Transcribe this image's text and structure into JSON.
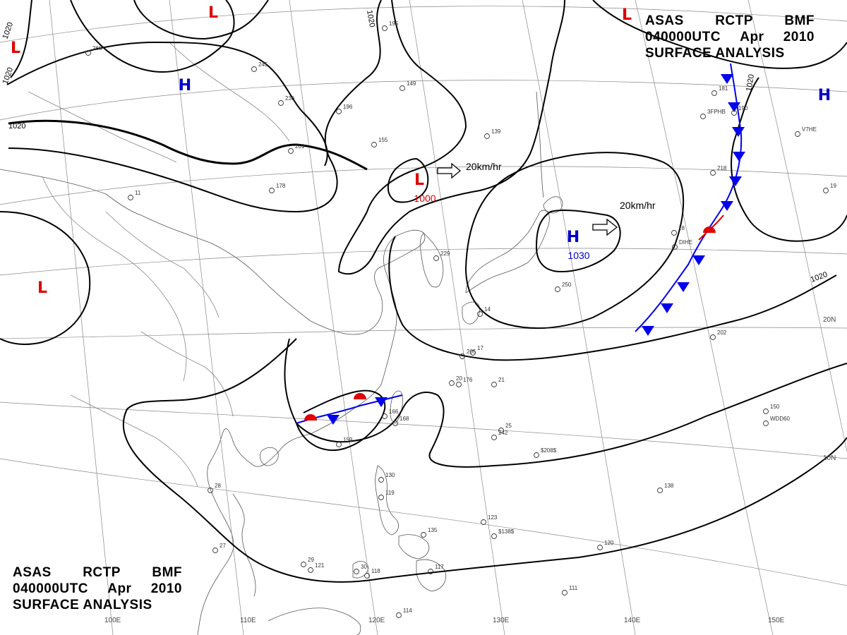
{
  "title_top": {
    "line1": [
      "ASAS",
      "RCTP",
      "BMF"
    ],
    "line2": [
      "040000UTC",
      "Apr",
      "2010"
    ],
    "line3": "SURFACE ANALYSIS"
  },
  "title_bottom": {
    "line1": [
      "ASAS",
      "RCTP",
      "BMF"
    ],
    "line2": [
      "040000UTC",
      "Apr",
      "2010"
    ],
    "line3": "SURFACE ANALYSIS"
  },
  "longitude_labels": [
    "100E",
    "110E",
    "120E",
    "130E",
    "140E",
    "150E"
  ],
  "latitude_labels": [
    "20N",
    "10N"
  ],
  "isobar_labels": [
    "1020",
    "1020",
    "1020",
    "1020",
    "1020",
    "1020"
  ],
  "pressure_centers": [
    {
      "type": "L",
      "color": "#e00000"
    },
    {
      "type": "L",
      "color": "#e00000"
    },
    {
      "type": "L",
      "color": "#e00000"
    },
    {
      "type": "L",
      "color": "#e00000",
      "value": "1000"
    },
    {
      "type": "L",
      "color": "#e00000"
    },
    {
      "type": "H",
      "color": "#0000cc"
    },
    {
      "type": "H",
      "color": "#0000cc",
      "value": "1030"
    },
    {
      "type": "H",
      "color": "#0000cc"
    }
  ],
  "motion_labels": [
    "20km/hr",
    "20km/hr"
  ],
  "station_values": [
    "245",
    "236",
    "201",
    "178",
    "196",
    "155",
    "149",
    "195",
    "139",
    "229",
    "250",
    "202",
    "205",
    "176",
    "242",
    "159",
    "168",
    "166",
    "138",
    "130",
    "119",
    "135",
    "123",
    "120",
    "121",
    "118",
    "117",
    "114",
    "111",
    "150",
    "181",
    "190",
    "218",
    "266",
    "11",
    "28",
    "27",
    "29",
    "30",
    "25",
    "21",
    "20",
    "17",
    "18",
    "14",
    "19",
    "$208$",
    "$138$",
    "WDD60",
    "DIHE",
    "3FPHB",
    "V7HE"
  ],
  "colors": {
    "low": "#e00000",
    "high": "#0000cc",
    "cold_front": "#0000ee",
    "warm_front": "#e00000",
    "isobar": "#000000",
    "grid": "#777777",
    "coast": "#555555"
  }
}
